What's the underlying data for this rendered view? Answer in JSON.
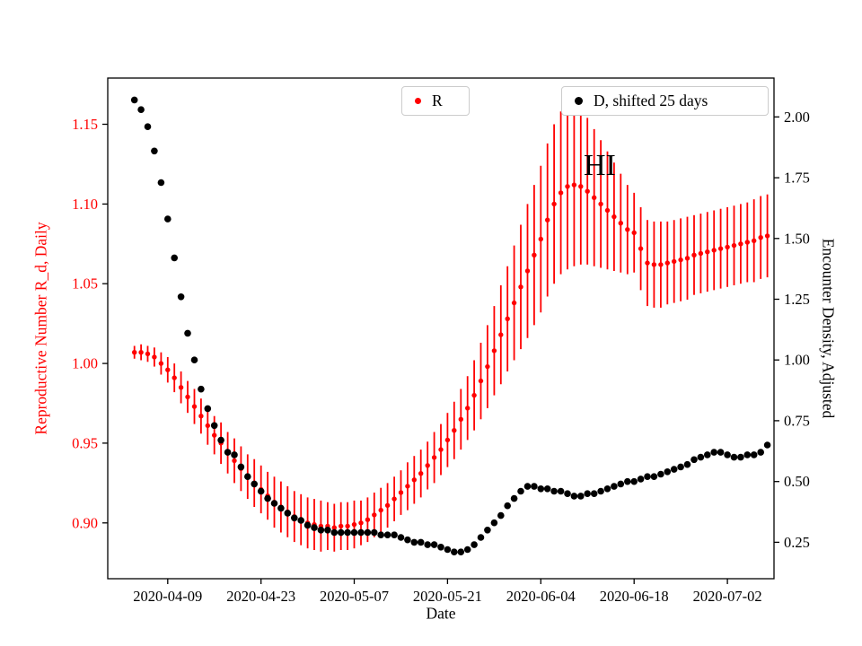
{
  "figure": {
    "xlabel": "Date",
    "ylabel_left": "Reproductive Number R_d, Daily",
    "ylabel_right": "Encounter Density, Adjusted",
    "annotation": "HI",
    "legend": [
      {
        "label": "R",
        "color": "#ff0000"
      },
      {
        "label": "D, shifted 25 days",
        "color": "#000000"
      }
    ]
  },
  "chart_data": {
    "type": "scatter",
    "title": "",
    "xlabel": "Date",
    "ylabel_left": "Reproductive Number R_d, Daily",
    "ylabel_right": "Encounter Density, Adjusted",
    "annotation": {
      "text": "HI",
      "date": "2020-06-11",
      "y_left": 1.13
    },
    "x_start": "2020-04-04",
    "xlim": [
      "2020-03-31",
      "2020-07-09"
    ],
    "xticks": [
      "2020-04-09",
      "2020-04-23",
      "2020-05-07",
      "2020-05-21",
      "2020-06-04",
      "2020-06-18",
      "2020-07-02"
    ],
    "ylim_left": [
      0.865,
      1.179
    ],
    "yticks_left": [
      0.9,
      0.95,
      1.0,
      1.05,
      1.1,
      1.15
    ],
    "ylim_right": [
      0.1,
      2.16
    ],
    "yticks_right": [
      0.25,
      0.5,
      0.75,
      1.0,
      1.25,
      1.5,
      1.75,
      2.0
    ],
    "grid": false,
    "legend_position": "top-inside",
    "series": [
      {
        "name": "R",
        "axis": "left",
        "color": "#ff0000",
        "marker": "dot",
        "errorbars": true,
        "values": [
          1.007,
          1.007,
          1.006,
          1.004,
          1.0,
          0.996,
          0.991,
          0.985,
          0.979,
          0.973,
          0.967,
          0.961,
          0.955,
          0.95,
          0.944,
          0.939,
          0.934,
          0.929,
          0.925,
          0.921,
          0.917,
          0.913,
          0.91,
          0.907,
          0.904,
          0.902,
          0.9,
          0.899,
          0.898,
          0.898,
          0.897,
          0.898,
          0.898,
          0.899,
          0.9,
          0.902,
          0.905,
          0.908,
          0.911,
          0.915,
          0.919,
          0.923,
          0.927,
          0.931,
          0.936,
          0.941,
          0.946,
          0.952,
          0.958,
          0.965,
          0.972,
          0.98,
          0.989,
          0.998,
          1.008,
          1.018,
          1.028,
          1.038,
          1.048,
          1.058,
          1.068,
          1.078,
          1.09,
          1.1,
          1.107,
          1.111,
          1.112,
          1.111,
          1.108,
          1.104,
          1.1,
          1.096,
          1.092,
          1.088,
          1.084,
          1.082,
          1.072,
          1.063,
          1.062,
          1.062,
          1.063,
          1.064,
          1.065,
          1.066,
          1.068,
          1.069,
          1.07,
          1.071,
          1.072,
          1.073,
          1.074,
          1.075,
          1.076,
          1.077,
          1.079,
          1.08
        ],
        "errors": [
          0.004,
          0.005,
          0.005,
          0.006,
          0.007,
          0.008,
          0.009,
          0.01,
          0.01,
          0.011,
          0.011,
          0.012,
          0.012,
          0.013,
          0.013,
          0.014,
          0.014,
          0.014,
          0.015,
          0.015,
          0.015,
          0.016,
          0.016,
          0.016,
          0.016,
          0.016,
          0.016,
          0.016,
          0.016,
          0.015,
          0.015,
          0.015,
          0.015,
          0.015,
          0.014,
          0.014,
          0.014,
          0.014,
          0.014,
          0.014,
          0.014,
          0.015,
          0.015,
          0.015,
          0.015,
          0.016,
          0.016,
          0.017,
          0.018,
          0.019,
          0.02,
          0.022,
          0.024,
          0.026,
          0.028,
          0.031,
          0.033,
          0.036,
          0.039,
          0.042,
          0.044,
          0.046,
          0.048,
          0.05,
          0.051,
          0.052,
          0.051,
          0.049,
          0.046,
          0.043,
          0.04,
          0.037,
          0.034,
          0.031,
          0.028,
          0.025,
          0.026,
          0.027,
          0.027,
          0.027,
          0.026,
          0.026,
          0.026,
          0.026,
          0.025,
          0.025,
          0.025,
          0.025,
          0.025,
          0.025,
          0.025,
          0.025,
          0.025,
          0.026,
          0.026,
          0.026
        ]
      },
      {
        "name": "D, shifted 25 days",
        "axis": "right",
        "color": "#000000",
        "marker": "dot",
        "errorbars": false,
        "values": [
          2.07,
          2.03,
          1.96,
          1.86,
          1.73,
          1.58,
          1.42,
          1.26,
          1.11,
          1.0,
          0.88,
          0.8,
          0.73,
          0.67,
          0.62,
          0.61,
          0.56,
          0.52,
          0.49,
          0.46,
          0.43,
          0.41,
          0.39,
          0.37,
          0.35,
          0.34,
          0.32,
          0.31,
          0.3,
          0.3,
          0.29,
          0.29,
          0.29,
          0.29,
          0.29,
          0.29,
          0.29,
          0.28,
          0.28,
          0.28,
          0.27,
          0.26,
          0.25,
          0.25,
          0.24,
          0.24,
          0.23,
          0.22,
          0.21,
          0.21,
          0.22,
          0.24,
          0.27,
          0.3,
          0.33,
          0.36,
          0.4,
          0.43,
          0.46,
          0.48,
          0.48,
          0.47,
          0.47,
          0.46,
          0.46,
          0.45,
          0.44,
          0.44,
          0.45,
          0.45,
          0.46,
          0.47,
          0.48,
          0.49,
          0.5,
          0.5,
          0.51,
          0.52,
          0.52,
          0.53,
          0.54,
          0.55,
          0.56,
          0.57,
          0.59,
          0.6,
          0.61,
          0.62,
          0.62,
          0.61,
          0.6,
          0.6,
          0.61,
          0.61,
          0.62,
          0.65
        ]
      }
    ]
  }
}
